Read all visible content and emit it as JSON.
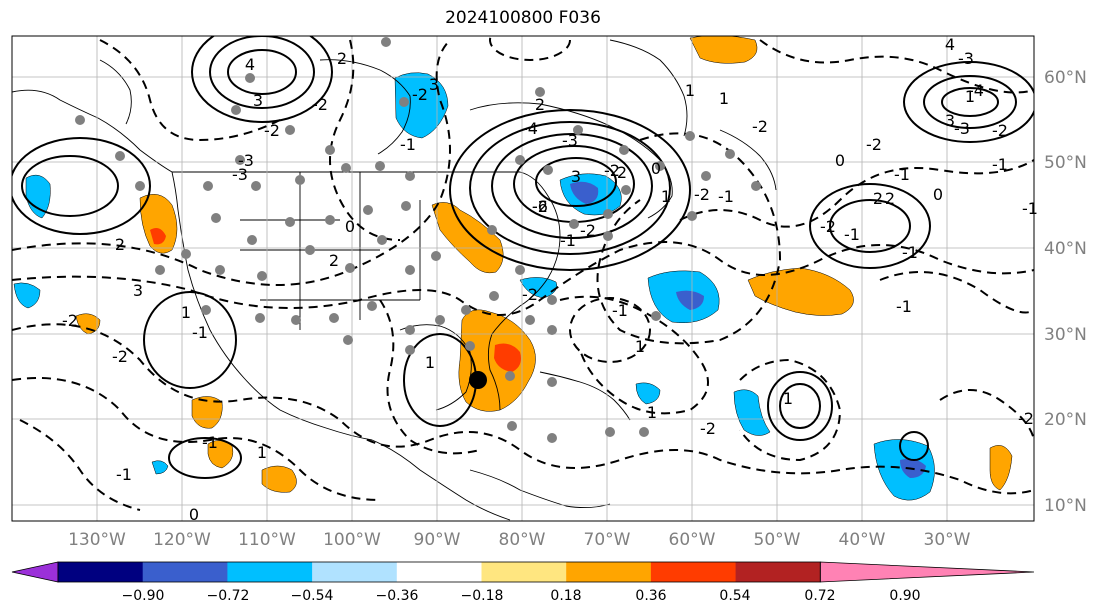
{
  "title": "2024100800 F036",
  "latitude_labels": [
    "60°N",
    "50°N",
    "40°N",
    "30°N",
    "20°N",
    "10°N"
  ],
  "longitude_labels": [
    "130°W",
    "120°W",
    "110°W",
    "100°W",
    "90°W",
    "80°W",
    "70°W",
    "60°W",
    "50°W",
    "40°W",
    "30°W"
  ],
  "colorbar": {
    "ticks": [
      "−0.90",
      "−0.72",
      "−0.54",
      "−0.36",
      "−0.18",
      "0.18",
      "0.36",
      "0.54",
      "0.72",
      "0.90"
    ],
    "colors": [
      "#9b30d9",
      "#000080",
      "#3a5fcd",
      "#00bfff",
      "#b0e2ff",
      "#ffffff",
      "#ffe680",
      "#ffa500",
      "#ff3c00",
      "#b22222",
      "#ff82b4"
    ]
  },
  "contour_labels": [
    "-2",
    "-1",
    "-1",
    "0",
    "1",
    "-2",
    "-1",
    "1",
    "-3",
    "-2",
    "2",
    "3",
    "4",
    "-2",
    "2",
    "0",
    "-3",
    "1",
    "3",
    "-4",
    "-1",
    "-2",
    "2",
    "1",
    "-1",
    "1",
    "-3",
    "3",
    "-2",
    "-1",
    "-2",
    "2",
    "0",
    "1",
    "-2",
    "-1",
    "-2",
    "0",
    "-2",
    "-1",
    "2",
    "-2",
    "-1",
    "2",
    "-1",
    "-1",
    "-3",
    "-2",
    "1",
    "-4",
    "3",
    "-3",
    "4",
    "0",
    "-1",
    "-1",
    "1",
    "-2",
    "1",
    "-2",
    "-2",
    "-2",
    "2",
    "3",
    "-6",
    "1"
  ]
}
